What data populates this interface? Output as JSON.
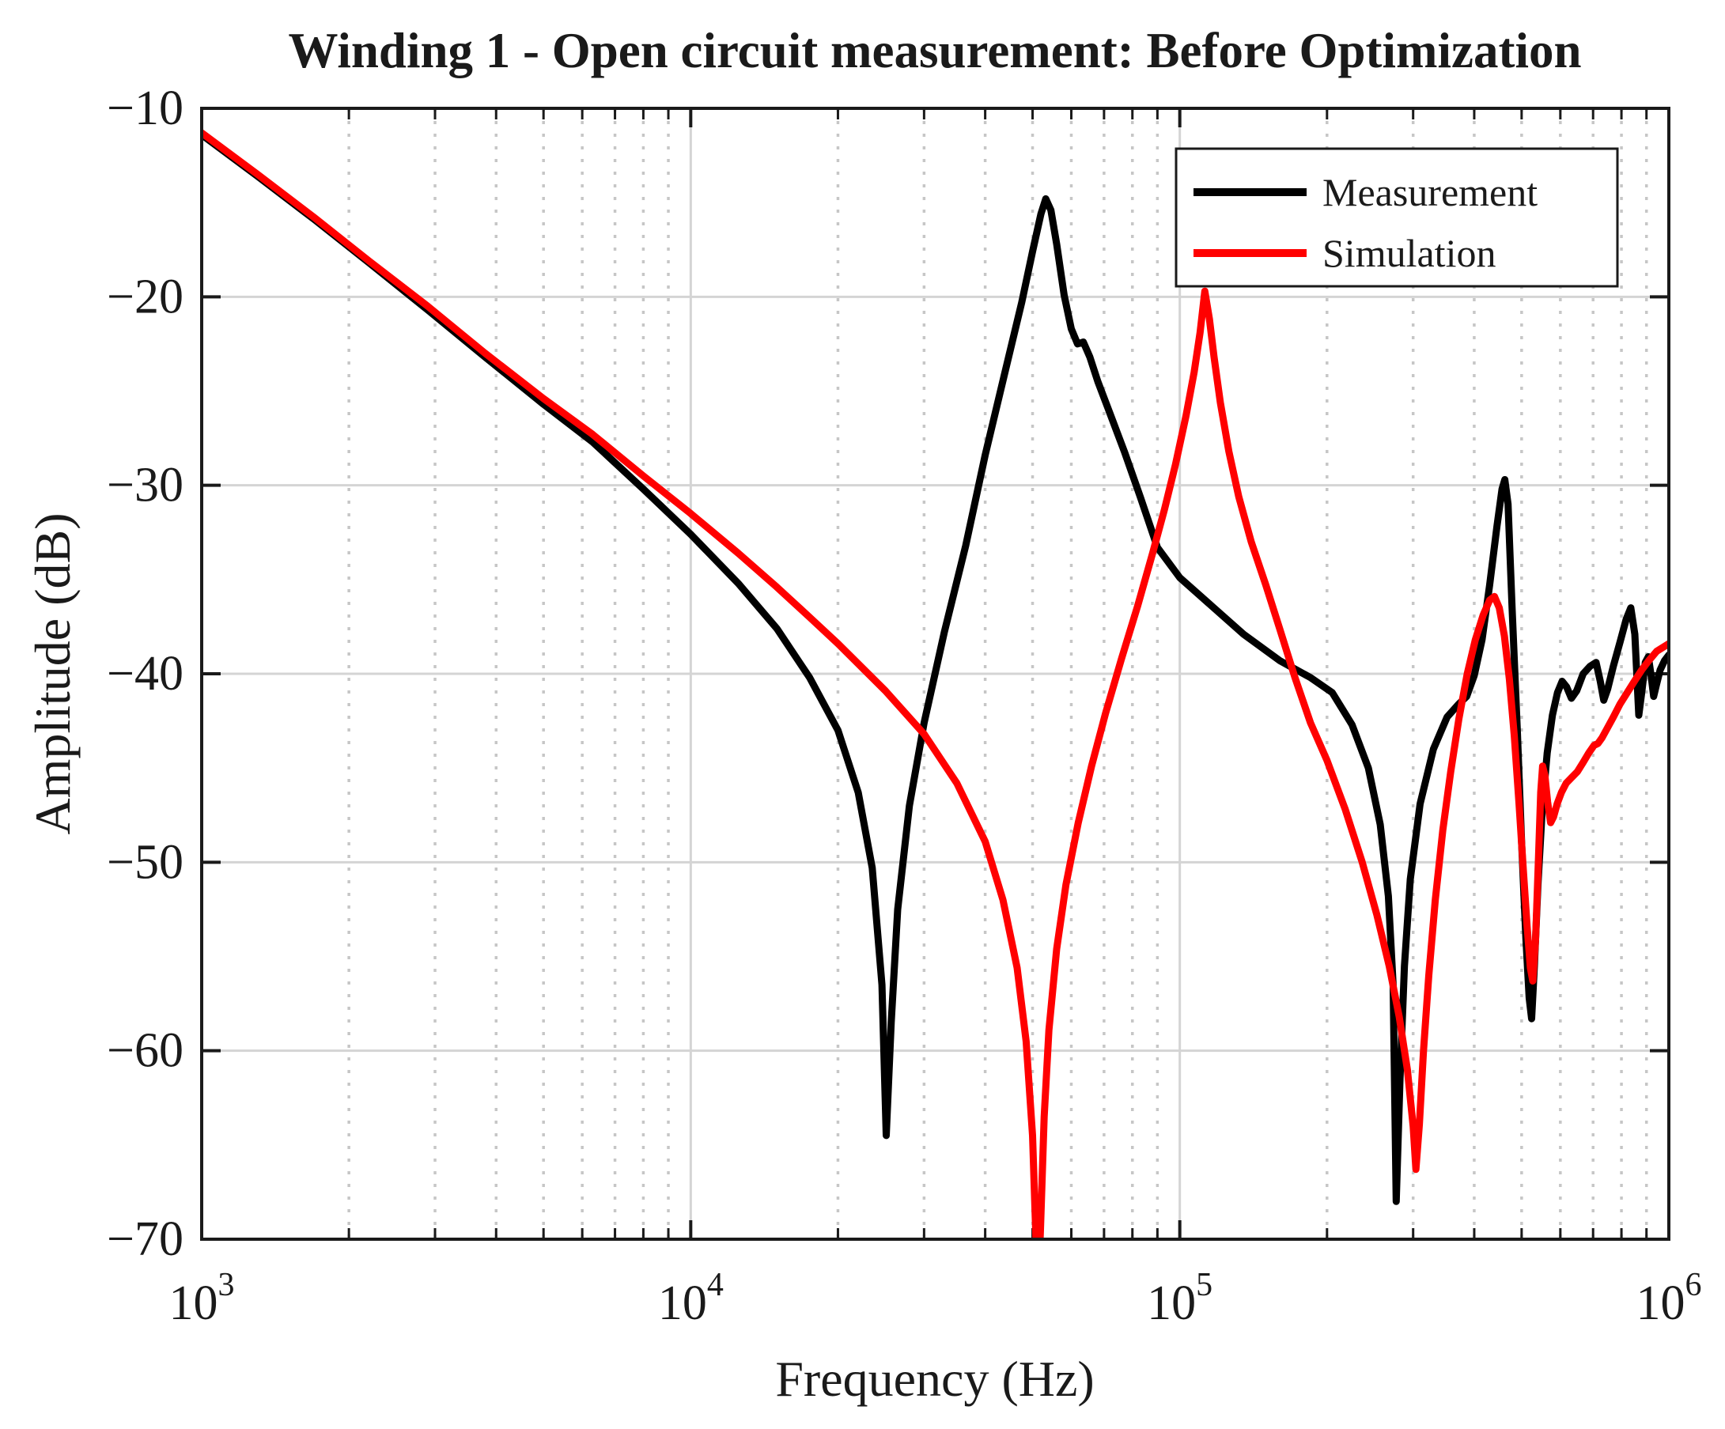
{
  "chart_data": {
    "type": "line",
    "title": "Winding 1 - Open circuit measurement: Before Optimization",
    "xlabel": "Frequency (Hz)",
    "ylabel": "Amplitude (dB)",
    "xscale": "log",
    "xlim": [
      1000,
      1000000
    ],
    "ylim": [
      -70,
      -10
    ],
    "grid": {
      "major": true,
      "x_minor_dotted": true,
      "y_minor": false
    },
    "legend": {
      "position": "northeast",
      "border": true
    },
    "axis_color": "#1a1a1a",
    "grid_major_color": "#d4d4d4",
    "grid_minor_color": "#c6c6c6",
    "xticks": [
      {
        "value": 1000,
        "base": "10",
        "exp": "3"
      },
      {
        "value": 10000,
        "base": "10",
        "exp": "4"
      },
      {
        "value": 100000,
        "base": "10",
        "exp": "5"
      },
      {
        "value": 1000000,
        "base": "10",
        "exp": "6"
      }
    ],
    "yticks": [
      {
        "value": -10,
        "label": "−10"
      },
      {
        "value": -20,
        "label": "−20"
      },
      {
        "value": -30,
        "label": "−30"
      },
      {
        "value": -40,
        "label": "−40"
      },
      {
        "value": -50,
        "label": "−50"
      },
      {
        "value": -60,
        "label": "−60"
      },
      {
        "value": -70,
        "label": "−70"
      }
    ],
    "series": [
      {
        "name": "Measurement",
        "color": "#000000",
        "points": [
          [
            1000,
            -11.4
          ],
          [
            1300,
            -13.6
          ],
          [
            1700,
            -15.9
          ],
          [
            2200,
            -18.2
          ],
          [
            2900,
            -20.7
          ],
          [
            3800,
            -23.2
          ],
          [
            5000,
            -25.7
          ],
          [
            6300,
            -27.7
          ],
          [
            8000,
            -30.2
          ],
          [
            10000,
            -32.6
          ],
          [
            12500,
            -35.2
          ],
          [
            15000,
            -37.6
          ],
          [
            17500,
            -40.2
          ],
          [
            20000,
            -43.0
          ],
          [
            22000,
            -46.3
          ],
          [
            23500,
            -50.3
          ],
          [
            24600,
            -56.5
          ],
          [
            25100,
            -64.5
          ],
          [
            25700,
            -58.5
          ],
          [
            26500,
            -52.5
          ],
          [
            28000,
            -47.0
          ],
          [
            30000,
            -42.6
          ],
          [
            33000,
            -37.8
          ],
          [
            36500,
            -33.2
          ],
          [
            40000,
            -28.4
          ],
          [
            44000,
            -23.9
          ],
          [
            47500,
            -20.3
          ],
          [
            50000,
            -17.6
          ],
          [
            52000,
            -15.6
          ],
          [
            53200,
            -14.8
          ],
          [
            54500,
            -15.4
          ],
          [
            56000,
            -17.2
          ],
          [
            58000,
            -19.9
          ],
          [
            60000,
            -21.7
          ],
          [
            61800,
            -22.5
          ],
          [
            63500,
            -22.4
          ],
          [
            65500,
            -23.2
          ],
          [
            68000,
            -24.5
          ],
          [
            72000,
            -26.2
          ],
          [
            77000,
            -28.2
          ],
          [
            83000,
            -30.6
          ],
          [
            90000,
            -33.3
          ],
          [
            100000,
            -34.9
          ],
          [
            115000,
            -36.3
          ],
          [
            135000,
            -37.9
          ],
          [
            160000,
            -39.3
          ],
          [
            185000,
            -40.2
          ],
          [
            205000,
            -41.0
          ],
          [
            225000,
            -42.7
          ],
          [
            243000,
            -45.0
          ],
          [
            257000,
            -48.0
          ],
          [
            267000,
            -51.8
          ],
          [
            273000,
            -56.5
          ],
          [
            277000,
            -68.0
          ],
          [
            282000,
            -61.5
          ],
          [
            288000,
            -55.5
          ],
          [
            296000,
            -50.9
          ],
          [
            310000,
            -46.9
          ],
          [
            330000,
            -44.0
          ],
          [
            352000,
            -42.3
          ],
          [
            372000,
            -41.6
          ],
          [
            386000,
            -41.2
          ],
          [
            400000,
            -40.1
          ],
          [
            415000,
            -38.2
          ],
          [
            430000,
            -35.3
          ],
          [
            445000,
            -32.2
          ],
          [
            456000,
            -30.2
          ],
          [
            462000,
            -29.7
          ],
          [
            469000,
            -31.0
          ],
          [
            478000,
            -36.5
          ],
          [
            490000,
            -43.0
          ],
          [
            500000,
            -49.0
          ],
          [
            510000,
            -54.0
          ],
          [
            518000,
            -57.2
          ],
          [
            524000,
            -58.3
          ],
          [
            531000,
            -55.5
          ],
          [
            540000,
            -51.2
          ],
          [
            551000,
            -47.2
          ],
          [
            564000,
            -44.2
          ],
          [
            578000,
            -42.2
          ],
          [
            592000,
            -41.0
          ],
          [
            605000,
            -40.4
          ],
          [
            618000,
            -40.7
          ],
          [
            632000,
            -41.3
          ],
          [
            648000,
            -40.9
          ],
          [
            668000,
            -40.0
          ],
          [
            690000,
            -39.6
          ],
          [
            710000,
            -39.4
          ],
          [
            724000,
            -40.4
          ],
          [
            736000,
            -41.4
          ],
          [
            750000,
            -40.8
          ],
          [
            770000,
            -39.6
          ],
          [
            795000,
            -38.3
          ],
          [
            818000,
            -37.1
          ],
          [
            836000,
            -36.5
          ],
          [
            852000,
            -37.9
          ],
          [
            868000,
            -42.2
          ],
          [
            880000,
            -41.0
          ],
          [
            895000,
            -39.4
          ],
          [
            908000,
            -39.1
          ],
          [
            920000,
            -40.1
          ],
          [
            931000,
            -41.2
          ],
          [
            943000,
            -40.6
          ],
          [
            960000,
            -39.8
          ],
          [
            980000,
            -39.3
          ],
          [
            1000000,
            -39.0
          ]
        ]
      },
      {
        "name": "Simulation",
        "color": "#ff0000",
        "points": [
          [
            1000,
            -11.3
          ],
          [
            1300,
            -13.5
          ],
          [
            1700,
            -15.8
          ],
          [
            2200,
            -18.1
          ],
          [
            2900,
            -20.5
          ],
          [
            3800,
            -23.0
          ],
          [
            5000,
            -25.4
          ],
          [
            6300,
            -27.3
          ],
          [
            8000,
            -29.5
          ],
          [
            10000,
            -31.5
          ],
          [
            12500,
            -33.6
          ],
          [
            15000,
            -35.4
          ],
          [
            17500,
            -37.0
          ],
          [
            20000,
            -38.4
          ],
          [
            25000,
            -40.9
          ],
          [
            30000,
            -43.2
          ],
          [
            35000,
            -45.8
          ],
          [
            40000,
            -48.9
          ],
          [
            43500,
            -52.0
          ],
          [
            46500,
            -55.6
          ],
          [
            48500,
            -59.5
          ],
          [
            50000,
            -64.5
          ],
          [
            50800,
            -70.0
          ],
          [
            51300,
            -73.0
          ],
          [
            51900,
            -69.5
          ],
          [
            52800,
            -63.5
          ],
          [
            54000,
            -58.9
          ],
          [
            56000,
            -54.6
          ],
          [
            58500,
            -51.2
          ],
          [
            62000,
            -47.9
          ],
          [
            66000,
            -44.9
          ],
          [
            70500,
            -42.1
          ],
          [
            76000,
            -39.2
          ],
          [
            82000,
            -36.4
          ],
          [
            88000,
            -33.6
          ],
          [
            93000,
            -31.3
          ],
          [
            98000,
            -28.9
          ],
          [
            103000,
            -26.3
          ],
          [
            107000,
            -24.0
          ],
          [
            110000,
            -21.9
          ],
          [
            112500,
            -19.7
          ],
          [
            115000,
            -21.2
          ],
          [
            117500,
            -23.2
          ],
          [
            121000,
            -25.6
          ],
          [
            126000,
            -28.2
          ],
          [
            132000,
            -30.6
          ],
          [
            140000,
            -33.0
          ],
          [
            150000,
            -35.3
          ],
          [
            160000,
            -37.6
          ],
          [
            172000,
            -40.2
          ],
          [
            185000,
            -42.6
          ],
          [
            200000,
            -44.6
          ],
          [
            218000,
            -47.2
          ],
          [
            236000,
            -50.0
          ],
          [
            253000,
            -52.8
          ],
          [
            268000,
            -55.5
          ],
          [
            281000,
            -58.2
          ],
          [
            292000,
            -61.0
          ],
          [
            300000,
            -64.0
          ],
          [
            304000,
            -66.3
          ],
          [
            309000,
            -63.9
          ],
          [
            315000,
            -60.0
          ],
          [
            323000,
            -56.0
          ],
          [
            333000,
            -52.0
          ],
          [
            345000,
            -48.3
          ],
          [
            358000,
            -45.2
          ],
          [
            372000,
            -42.4
          ],
          [
            387000,
            -40.0
          ],
          [
            402000,
            -38.2
          ],
          [
            417000,
            -36.9
          ],
          [
            430000,
            -36.1
          ],
          [
            440000,
            -35.9
          ],
          [
            450000,
            -36.5
          ],
          [
            461000,
            -38.0
          ],
          [
            472000,
            -40.3
          ],
          [
            483000,
            -43.3
          ],
          [
            494000,
            -46.9
          ],
          [
            504000,
            -50.4
          ],
          [
            513000,
            -53.4
          ],
          [
            521000,
            -55.6
          ],
          [
            527000,
            -56.3
          ],
          [
            534000,
            -54.1
          ],
          [
            541000,
            -50.0
          ],
          [
            547000,
            -46.3
          ],
          [
            552000,
            -44.9
          ],
          [
            558000,
            -45.4
          ],
          [
            565000,
            -46.8
          ],
          [
            573000,
            -47.9
          ],
          [
            581000,
            -47.6
          ],
          [
            591000,
            -46.9
          ],
          [
            603000,
            -46.3
          ],
          [
            617000,
            -45.8
          ],
          [
            633000,
            -45.5
          ],
          [
            650000,
            -45.2
          ],
          [
            668000,
            -44.7
          ],
          [
            686000,
            -44.2
          ],
          [
            703000,
            -43.8
          ],
          [
            716000,
            -43.7
          ],
          [
            730000,
            -43.4
          ],
          [
            748000,
            -42.9
          ],
          [
            770000,
            -42.3
          ],
          [
            795000,
            -41.6
          ],
          [
            822000,
            -41.0
          ],
          [
            850000,
            -40.4
          ],
          [
            880000,
            -39.8
          ],
          [
            910000,
            -39.3
          ],
          [
            945000,
            -38.8
          ],
          [
            1000000,
            -38.4
          ]
        ]
      }
    ]
  }
}
